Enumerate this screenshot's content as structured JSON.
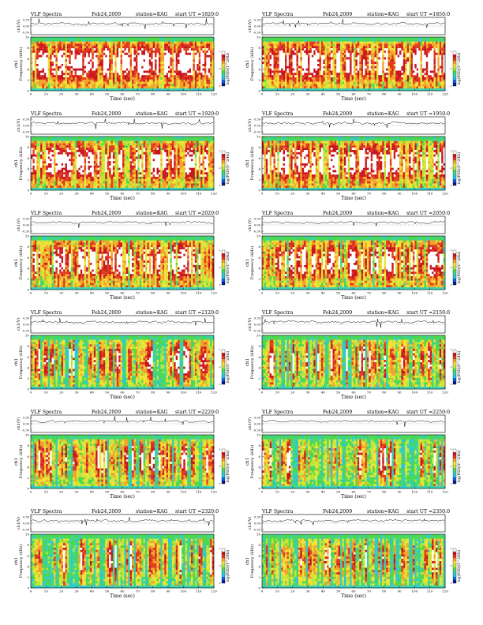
{
  "page": {
    "columns": 2,
    "rows": 6
  },
  "chart_data": [
    {
      "type": "heatmap",
      "header": {
        "label": "VLF Spectra",
        "date": "Feb24,2009",
        "station": "station=KAG",
        "start": "start  UT  =1820:0"
      },
      "waveform": {
        "ylabel": "ch1(V)",
        "yticks": [
          "0.30",
          "0.00",
          "-0.30"
        ]
      },
      "spectrogram": {
        "ylabel": "Frequency  (kHz)",
        "channel": "ch1",
        "ylim": [
          0,
          10
        ],
        "yticks": [
          "0",
          "2",
          "4",
          "6",
          "8",
          "10"
        ],
        "intensity": 0.85
      },
      "xlabel": "Time  (sec)",
      "xlim": [
        0,
        120
      ],
      "xticks": [
        "0",
        "10",
        "20",
        "30",
        "40",
        "50",
        "60",
        "70",
        "80",
        "90",
        "100",
        "110",
        "120"
      ],
      "colorbar": {
        "label": "log(PSD)(V^2/Hz)",
        "ticks": [
          "-1",
          "-3",
          "-5"
        ]
      }
    },
    {
      "type": "heatmap",
      "header": {
        "label": "VLF Spectra",
        "date": "Feb24,2009",
        "station": "station=KAG",
        "start": "start  UT  =1850:0"
      },
      "waveform": {
        "ylabel": "ch1(V)",
        "yticks": [
          "0.30",
          "0.00",
          "-0.30"
        ]
      },
      "spectrogram": {
        "ylabel": "Frequency  (kHz)",
        "channel": "ch1",
        "ylim": [
          0,
          10
        ],
        "yticks": [
          "0",
          "2",
          "4",
          "6",
          "8",
          "10"
        ],
        "intensity": 0.8
      },
      "xlabel": "Time  (sec)",
      "xlim": [
        0,
        120
      ],
      "xticks": [
        "0",
        "10",
        "20",
        "30",
        "40",
        "50",
        "60",
        "70",
        "80",
        "90",
        "100",
        "110",
        "120"
      ],
      "colorbar": {
        "label": "log(PSD)(V^2/Hz)",
        "ticks": [
          "-1",
          "-3",
          "-5"
        ]
      }
    },
    {
      "type": "heatmap",
      "header": {
        "label": "VLF Spectra",
        "date": "Feb24,2009",
        "station": "station=KAG",
        "start": "start  UT  =1920:0"
      },
      "waveform": {
        "ylabel": "ch1(V)",
        "yticks": [
          "0.30",
          "0.00",
          "-0.30"
        ]
      },
      "spectrogram": {
        "ylabel": "Frequency  (kHz)",
        "channel": "ch1",
        "ylim": [
          0,
          10
        ],
        "yticks": [
          "0",
          "2",
          "4",
          "6",
          "8",
          "10"
        ],
        "intensity": 0.7
      },
      "xlabel": "Time  (sec)",
      "xlim": [
        0,
        120
      ],
      "xticks": [
        "0",
        "10",
        "20",
        "30",
        "40",
        "50",
        "60",
        "70",
        "80",
        "90",
        "100",
        "110",
        "120"
      ],
      "colorbar": {
        "label": "log(PSD)(V^2/Hz)",
        "ticks": [
          "-1",
          "-3",
          "-5"
        ]
      }
    },
    {
      "type": "heatmap",
      "header": {
        "label": "VLF Spectra",
        "date": "Feb24,2009",
        "station": "station=KAG",
        "start": "start  UT  =1950:0"
      },
      "waveform": {
        "ylabel": "ch1(V)",
        "yticks": [
          "0.30",
          "0.00",
          "-0.30"
        ]
      },
      "spectrogram": {
        "ylabel": "Frequency  (kHz)",
        "channel": "ch1",
        "ylim": [
          0,
          10
        ],
        "yticks": [
          "0",
          "2",
          "4",
          "6",
          "8",
          "10"
        ],
        "intensity": 0.7
      },
      "xlabel": "Time  (sec)",
      "xlim": [
        0,
        120
      ],
      "xticks": [
        "0",
        "10",
        "20",
        "30",
        "40",
        "50",
        "60",
        "70",
        "80",
        "90",
        "100",
        "110",
        "120"
      ],
      "colorbar": {
        "label": "log(PSD)(V^2/Hz)",
        "ticks": [
          "-1",
          "-3",
          "-5"
        ]
      }
    },
    {
      "type": "heatmap",
      "header": {
        "label": "VLF Spectra",
        "date": "Feb24,2009",
        "station": "station=KAG",
        "start": "start  UT  =2020:0"
      },
      "waveform": {
        "ylabel": "ch1(V)",
        "yticks": [
          "0.30",
          "0.00",
          "-0.30"
        ]
      },
      "spectrogram": {
        "ylabel": "Frequency  (kHz)",
        "channel": "ch1",
        "ylim": [
          0,
          10
        ],
        "yticks": [
          "0",
          "2",
          "4",
          "6",
          "8",
          "10"
        ],
        "intensity": 0.6
      },
      "xlabel": "Time  (sec)",
      "xlim": [
        0,
        120
      ],
      "xticks": [
        "0",
        "10",
        "20",
        "30",
        "40",
        "50",
        "60",
        "70",
        "80",
        "90",
        "100",
        "110",
        "120"
      ],
      "colorbar": {
        "label": "log(PSD)(V^2/Hz)",
        "ticks": [
          "-1",
          "-3",
          "-5"
        ]
      }
    },
    {
      "type": "heatmap",
      "header": {
        "label": "VLF Spectra",
        "date": "Feb24,2009",
        "station": "station=KAG",
        "start": "start  UT  =2050:0"
      },
      "waveform": {
        "ylabel": "ch1(V)",
        "yticks": [
          "0.30",
          "0.00",
          "-0.30"
        ]
      },
      "spectrogram": {
        "ylabel": "Frequency  (kHz)",
        "channel": "ch1",
        "ylim": [
          0,
          10
        ],
        "yticks": [
          "0",
          "2",
          "4",
          "6",
          "8",
          "10"
        ],
        "intensity": 0.55
      },
      "xlabel": "Time  (sec)",
      "xlim": [
        0,
        120
      ],
      "xticks": [
        "0",
        "10",
        "20",
        "30",
        "40",
        "50",
        "60",
        "70",
        "80",
        "90",
        "100",
        "110",
        "120"
      ],
      "colorbar": {
        "label": "log(PSD)(V^2/Hz)",
        "ticks": [
          "-1",
          "-3",
          "-5"
        ]
      }
    },
    {
      "type": "heatmap",
      "header": {
        "label": "VLF Spectra",
        "date": "Feb24,2009",
        "station": "station=KAG",
        "start": "start  UT  =2120:0"
      },
      "waveform": {
        "ylabel": "ch1(V)",
        "yticks": [
          "0.30",
          "0.00",
          "-0.30"
        ]
      },
      "spectrogram": {
        "ylabel": "Frequency  (kHz)",
        "channel": "ch1",
        "ylim": [
          0,
          10
        ],
        "yticks": [
          "0",
          "2",
          "4",
          "6",
          "8",
          "10"
        ],
        "intensity": 0.35
      },
      "xlabel": "Time  (sec)",
      "xlim": [
        0,
        120
      ],
      "xticks": [
        "0",
        "10",
        "20",
        "30",
        "40",
        "50",
        "60",
        "70",
        "80",
        "90",
        "100",
        "110",
        "120"
      ],
      "colorbar": {
        "label": "log(PSD)(V^2/Hz)",
        "ticks": [
          "-1",
          "-3",
          "-5"
        ]
      }
    },
    {
      "type": "heatmap",
      "header": {
        "label": "VLF Spectra",
        "date": "Feb24,2009",
        "station": "station=KAG",
        "start": "start  UT  =2150:0"
      },
      "waveform": {
        "ylabel": "ch1(V)",
        "yticks": [
          "0.30",
          "0.00",
          "-0.30"
        ]
      },
      "spectrogram": {
        "ylabel": "Frequency  (kHz)",
        "channel": "ch1",
        "ylim": [
          0,
          10
        ],
        "yticks": [
          "0",
          "2",
          "4",
          "6",
          "8",
          "10"
        ],
        "intensity": 0.4
      },
      "xlabel": "Time  (sec)",
      "xlim": [
        0,
        120
      ],
      "xticks": [
        "0",
        "10",
        "20",
        "30",
        "40",
        "50",
        "60",
        "70",
        "80",
        "90",
        "100",
        "110",
        "120"
      ],
      "colorbar": {
        "label": "log(PSD)(V^2/Hz)",
        "ticks": [
          "-1",
          "-3",
          "-5"
        ]
      }
    },
    {
      "type": "heatmap",
      "header": {
        "label": "VLF Spectra",
        "date": "Feb24,2009",
        "station": "station=KAG",
        "start": "start  UT  =2220:0"
      },
      "waveform": {
        "ylabel": "ch1(V)",
        "yticks": [
          "0.30",
          "0.00",
          "-0.30"
        ]
      },
      "spectrogram": {
        "ylabel": "Frequency  (kHz)",
        "channel": "ch1",
        "ylim": [
          0,
          10
        ],
        "yticks": [
          "0",
          "2",
          "4",
          "6",
          "8",
          "10"
        ],
        "intensity": 0.35
      },
      "xlabel": "Time  (sec)",
      "xlim": [
        0,
        120
      ],
      "xticks": [
        "0",
        "10",
        "20",
        "30",
        "40",
        "50",
        "60",
        "70",
        "80",
        "90",
        "100",
        "110",
        "120"
      ],
      "colorbar": {
        "label": "log(PSD)(V^2/Hz)",
        "ticks": [
          "-1",
          "-3",
          "-5"
        ]
      }
    },
    {
      "type": "heatmap",
      "header": {
        "label": "VLF Spectra",
        "date": "Feb24,2009",
        "station": "station=KAG",
        "start": "start  UT  =2250:0"
      },
      "waveform": {
        "ylabel": "ch1(V)",
        "yticks": [
          "0.30",
          "0.00",
          "-0.30"
        ]
      },
      "spectrogram": {
        "ylabel": "Frequency  (kHz)",
        "channel": "ch1",
        "ylim": [
          0,
          10
        ],
        "yticks": [
          "0",
          "2",
          "4",
          "6",
          "8",
          "10"
        ],
        "intensity": 0.3
      },
      "xlabel": "Time  (sec)",
      "xlim": [
        0,
        120
      ],
      "xticks": [
        "0",
        "10",
        "20",
        "30",
        "40",
        "50",
        "60",
        "70",
        "80",
        "90",
        "100",
        "110",
        "120"
      ],
      "colorbar": {
        "label": "log(PSD)(V^2/Hz)",
        "ticks": [
          "-1",
          "-3",
          "-5"
        ]
      }
    },
    {
      "type": "heatmap",
      "header": {
        "label": "VLF Spectra",
        "date": "Feb24,2009",
        "station": "station=KAG",
        "start": "start  UT  =2320:0"
      },
      "waveform": {
        "ylabel": "ch1(V)",
        "yticks": [
          "0.30",
          "0.00",
          "-0.30"
        ]
      },
      "spectrogram": {
        "ylabel": "Frequency  (kHz)",
        "channel": "ch1",
        "ylim": [
          0,
          10
        ],
        "yticks": [
          "0",
          "2",
          "4",
          "6",
          "8",
          "10"
        ],
        "intensity": 0.25
      },
      "xlabel": "Time  (sec)",
      "xlim": [
        0,
        120
      ],
      "xticks": [
        "0",
        "10",
        "20",
        "30",
        "40",
        "50",
        "60",
        "70",
        "80",
        "90",
        "100",
        "110",
        "120"
      ],
      "colorbar": {
        "label": "log(PSD)(V^2/Hz)",
        "ticks": [
          "-1",
          "-3",
          "-5"
        ]
      }
    },
    {
      "type": "heatmap",
      "header": {
        "label": "VLF Spectra",
        "date": "Feb24,2009",
        "station": "station=KAG",
        "start": "start  UT  =2350:0"
      },
      "waveform": {
        "ylabel": "ch1(V)",
        "yticks": [
          "0.30",
          "0.00",
          "-0.30"
        ]
      },
      "spectrogram": {
        "ylabel": "Frequency  (kHz)",
        "channel": "ch1",
        "ylim": [
          0,
          10
        ],
        "yticks": [
          "0",
          "2",
          "4",
          "6",
          "8",
          "10"
        ],
        "intensity": 0.3
      },
      "xlabel": "Time  (sec)",
      "xlim": [
        0,
        120
      ],
      "xticks": [
        "0",
        "10",
        "20",
        "30",
        "40",
        "50",
        "60",
        "70",
        "80",
        "90",
        "100",
        "110",
        "120"
      ],
      "colorbar": {
        "label": "log(PSD)(V^2/Hz)",
        "ticks": [
          "-1",
          "-3",
          "-5"
        ]
      }
    }
  ],
  "palette": {
    "colormap": [
      "#0a1a8c",
      "#1060e0",
      "#27c3e6",
      "#35d0b0",
      "#4cd84c",
      "#b9e63a",
      "#f3e233",
      "#f2a22a",
      "#e03a1e",
      "#c8141e",
      "#ffffff"
    ],
    "waveform": "#000000",
    "background": "#ffffff"
  }
}
